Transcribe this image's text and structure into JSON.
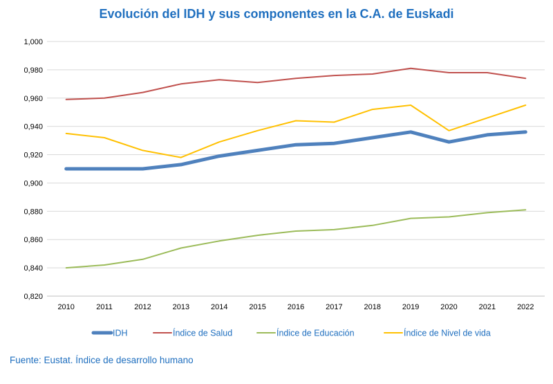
{
  "title": "Evolución del IDH y sus componentes en la C.A. de Euskadi",
  "source": "Fuente: Eustat. Índice de desarrollo humano",
  "colors": {
    "idh": "#4f81bd",
    "salud": "#c0504d",
    "educacion": "#9bbb59",
    "nivel_vida": "#ffc000",
    "grid": "#d9d9d9",
    "axis": "#bfbfbf",
    "title": "#1f6fbf"
  },
  "chart_data": {
    "type": "line",
    "title": "Evolución del IDH y sus componentes en la C.A. de Euskadi",
    "xlabel": "",
    "ylabel": "",
    "categories": [
      "2010",
      "2011",
      "2012",
      "2013",
      "2014",
      "2015",
      "2016",
      "2017",
      "2018",
      "2019",
      "2020",
      "2021",
      "2022"
    ],
    "ylim": [
      0.82,
      1.0
    ],
    "yticks": [
      "0,820",
      "0,840",
      "0,860",
      "0,880",
      "0,900",
      "0,920",
      "0,940",
      "0,960",
      "0,980",
      "1,000"
    ],
    "ytick_values": [
      0.82,
      0.84,
      0.86,
      0.88,
      0.9,
      0.92,
      0.94,
      0.96,
      0.98,
      1.0
    ],
    "grid": true,
    "legend": "bottom",
    "series": [
      {
        "key": "idh",
        "name": "IDH",
        "values": [
          0.91,
          0.91,
          0.91,
          0.913,
          0.919,
          0.923,
          0.927,
          0.928,
          0.932,
          0.936,
          0.929,
          0.934,
          0.936
        ]
      },
      {
        "key": "salud",
        "name": "Índice de Salud",
        "values": [
          0.959,
          0.96,
          0.964,
          0.97,
          0.973,
          0.971,
          0.974,
          0.976,
          0.977,
          0.981,
          0.978,
          0.978,
          0.974
        ]
      },
      {
        "key": "educacion",
        "name": "Índice de Educación",
        "values": [
          0.84,
          0.842,
          0.846,
          0.854,
          0.859,
          0.863,
          0.866,
          0.867,
          0.87,
          0.875,
          0.876,
          0.879,
          0.881
        ]
      },
      {
        "key": "nivel_vida",
        "name": "Índice de Nivel de vida",
        "values": [
          0.935,
          0.932,
          0.923,
          0.918,
          0.929,
          0.937,
          0.944,
          0.943,
          0.952,
          0.955,
          0.937,
          0.946,
          0.955
        ]
      }
    ]
  }
}
